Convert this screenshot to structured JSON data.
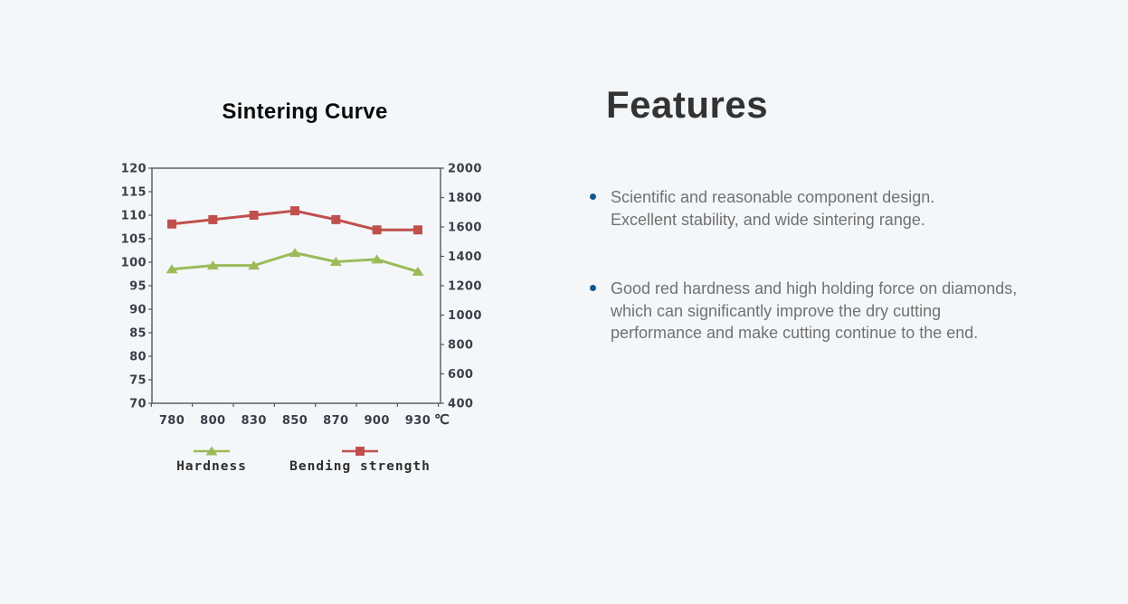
{
  "page": {
    "background_color": "#f4f7fa"
  },
  "chart_data": {
    "type": "line",
    "title": "Sintering Curve",
    "x_categories": [
      "780",
      "800",
      "830",
      "850",
      "870",
      "900",
      "930"
    ],
    "x_unit": "℃",
    "left_axis": {
      "min": 70,
      "max": 120,
      "step": 5,
      "ticks": [
        "120",
        "115",
        "110",
        "105",
        "100",
        "95",
        "90",
        "85",
        "80",
        "75",
        "70"
      ]
    },
    "right_axis": {
      "min": 400,
      "max": 2000,
      "step": 200,
      "ticks": [
        "2000",
        "1800",
        "1600",
        "1400",
        "1200",
        "1000",
        "800",
        "600",
        "400"
      ]
    },
    "series": [
      {
        "name": "Hardness",
        "axis": "left",
        "color": "#9bbb59",
        "marker": "triangle",
        "values": [
          98.5,
          99.3,
          99.3,
          102,
          100.1,
          100.6,
          98
        ]
      },
      {
        "name": "Bending strength",
        "axis": "right",
        "color": "#c0504d",
        "marker": "square",
        "values": [
          1620,
          1650,
          1680,
          1710,
          1650,
          1580,
          1580
        ]
      }
    ],
    "legend": {
      "position": "bottom",
      "entries": [
        "Hardness",
        "Bending strength"
      ]
    },
    "grid": false,
    "axis_line_color": "#55555e",
    "axis_text_color": "#3d3d49"
  },
  "features": {
    "heading": "Features",
    "bullet_color": "#15598a",
    "items": [
      [
        "Scientific and reasonable component design.",
        "Excellent stability, and wide sintering range."
      ],
      [
        "Good red hardness and high holding force on diamonds,",
        "which can significantly improve the dry cutting",
        "performance and make cutting continue to the end."
      ]
    ]
  }
}
